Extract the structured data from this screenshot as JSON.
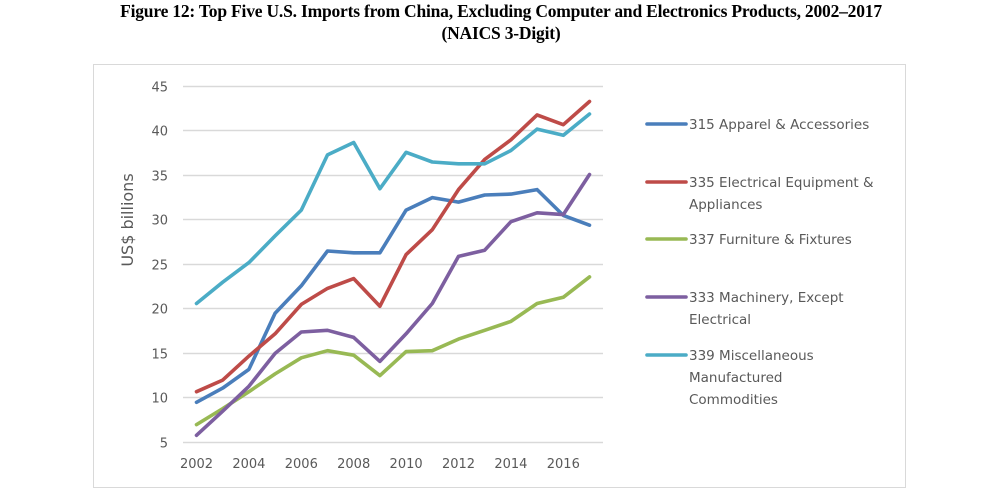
{
  "chart_data": {
    "type": "line",
    "title": "Figure 12: Top Five U.S. Imports from China, Excluding Computer and Electronics Products, 2002–2017",
    "subtitle": "(NAICS 3-Digit)",
    "xlabel": "",
    "ylabel": "US$ billions",
    "ylim": [
      5,
      45
    ],
    "yticks": [
      5,
      10,
      15,
      20,
      25,
      30,
      35,
      40,
      45
    ],
    "ytick_labels": [
      "5",
      "10",
      "15",
      "20",
      "25",
      "30",
      "35",
      "40",
      "45"
    ],
    "x": [
      2002,
      2003,
      2004,
      2005,
      2006,
      2007,
      2008,
      2009,
      2010,
      2011,
      2012,
      2013,
      2014,
      2015,
      2016,
      2017
    ],
    "xtick_labels": [
      "2002",
      "2004",
      "2006",
      "2008",
      "2010",
      "2012",
      "2014",
      "2016"
    ],
    "grid": "horizontal",
    "legend_position": "right",
    "series": [
      {
        "name": "315 Apparel & Accessories",
        "legend_lines": [
          "315 Apparel & Accessories"
        ],
        "color": "#4a7ebb",
        "values": [
          9.4,
          11.0,
          13.1,
          19.4,
          22.5,
          26.4,
          26.2,
          26.2,
          31.0,
          32.4,
          31.9,
          32.7,
          32.8,
          33.3,
          30.4,
          29.3
        ]
      },
      {
        "name": "335 Electrical Equipment & Appliances",
        "legend_lines": [
          "335 Electrical Equipment &",
          "Appliances"
        ],
        "color": "#be4b48",
        "values": [
          10.6,
          11.9,
          14.6,
          17.1,
          20.4,
          22.2,
          23.3,
          20.2,
          26.0,
          28.8,
          33.3,
          36.7,
          38.9,
          41.7,
          40.6,
          43.2
        ]
      },
      {
        "name": "337 Furniture & Fixtures",
        "legend_lines": [
          "337 Furniture & Fixtures"
        ],
        "color": "#98b954",
        "values": [
          6.9,
          8.7,
          10.6,
          12.6,
          14.4,
          15.2,
          14.7,
          12.4,
          15.1,
          15.2,
          16.5,
          17.5,
          18.5,
          20.5,
          21.2,
          23.5
        ]
      },
      {
        "name": "333 Machinery, Except Electrical",
        "legend_lines": [
          "333 Machinery, Except",
          "Electrical"
        ],
        "color": "#7d5fa0",
        "values": [
          5.7,
          8.4,
          11.2,
          14.9,
          17.3,
          17.5,
          16.7,
          14.0,
          17.1,
          20.5,
          25.8,
          26.5,
          29.7,
          30.7,
          30.5,
          35.0
        ]
      },
      {
        "name": "339 Miscellaneous Manufactured Commodities",
        "legend_lines": [
          "339 Miscellaneous",
          "Manufactured",
          "Commodities"
        ],
        "color": "#4bacc6",
        "values": [
          20.5,
          22.9,
          25.1,
          28.1,
          31.0,
          37.2,
          38.6,
          33.4,
          37.5,
          36.4,
          36.2,
          36.2,
          37.7,
          40.1,
          39.4,
          41.8
        ]
      }
    ]
  }
}
